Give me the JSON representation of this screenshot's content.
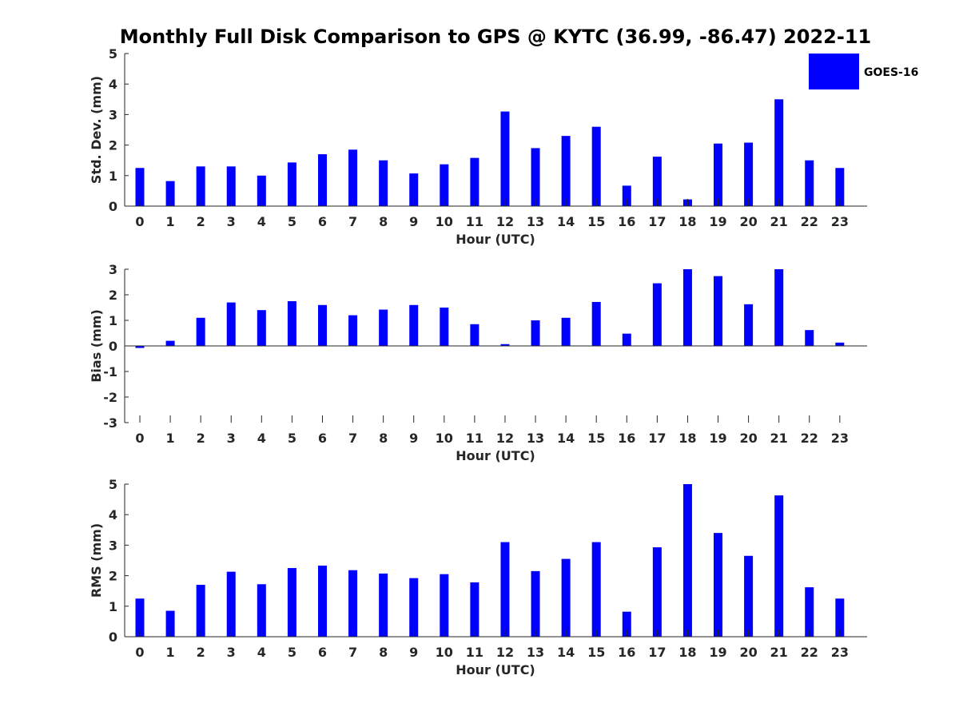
{
  "title": "Monthly Full Disk Comparison to GPS @ KYTC (36.99, -86.47) 2022-11",
  "legend": {
    "label": "GOES-16",
    "color": "#0000ff"
  },
  "bar_color": "#0000ff",
  "chart_data": [
    {
      "type": "bar",
      "ylabel": "Std. Dev. (mm)",
      "xlabel": "Hour (UTC)",
      "ylim": [
        0,
        5
      ],
      "yticks": [
        0,
        1,
        2,
        3,
        4,
        5
      ],
      "categories": [
        "0",
        "1",
        "2",
        "3",
        "4",
        "5",
        "6",
        "7",
        "8",
        "9",
        "10",
        "11",
        "12",
        "13",
        "14",
        "15",
        "16",
        "17",
        "18",
        "19",
        "20",
        "21",
        "22",
        "23"
      ],
      "series": [
        {
          "name": "GOES-16",
          "values": [
            1.25,
            0.82,
            1.3,
            1.3,
            1.0,
            1.43,
            1.7,
            1.85,
            1.5,
            1.07,
            1.37,
            1.58,
            3.1,
            1.9,
            2.3,
            2.6,
            0.67,
            1.62,
            0.22,
            2.05,
            2.08,
            3.5,
            1.5,
            1.25
          ]
        }
      ]
    },
    {
      "type": "bar",
      "ylabel": "Bias (mm)",
      "xlabel": "Hour (UTC)",
      "ylim": [
        -3,
        3
      ],
      "yticks": [
        -3,
        -2,
        -1,
        0,
        1,
        2,
        3
      ],
      "categories": [
        "0",
        "1",
        "2",
        "3",
        "4",
        "5",
        "6",
        "7",
        "8",
        "9",
        "10",
        "11",
        "12",
        "13",
        "14",
        "15",
        "16",
        "17",
        "18",
        "19",
        "20",
        "21",
        "22",
        "23"
      ],
      "series": [
        {
          "name": "GOES-16",
          "values": [
            -0.08,
            0.2,
            1.1,
            1.7,
            1.4,
            1.75,
            1.6,
            1.2,
            1.42,
            1.6,
            1.5,
            0.85,
            0.07,
            1.0,
            1.1,
            1.72,
            0.48,
            2.45,
            3.0,
            2.73,
            1.63,
            3.0,
            0.62,
            0.13
          ]
        }
      ]
    },
    {
      "type": "bar",
      "ylabel": "RMS (mm)",
      "xlabel": "Hour (UTC)",
      "ylim": [
        0,
        5
      ],
      "yticks": [
        0,
        1,
        2,
        3,
        4,
        5
      ],
      "categories": [
        "0",
        "1",
        "2",
        "3",
        "4",
        "5",
        "6",
        "7",
        "8",
        "9",
        "10",
        "11",
        "12",
        "13",
        "14",
        "15",
        "16",
        "17",
        "18",
        "19",
        "20",
        "21",
        "22",
        "23"
      ],
      "series": [
        {
          "name": "GOES-16",
          "values": [
            1.25,
            0.85,
            1.7,
            2.13,
            1.72,
            2.25,
            2.33,
            2.18,
            2.07,
            1.92,
            2.05,
            1.78,
            3.1,
            2.15,
            2.55,
            3.1,
            0.82,
            2.93,
            5.0,
            3.4,
            2.65,
            4.63,
            1.62,
            1.25
          ]
        }
      ]
    }
  ]
}
